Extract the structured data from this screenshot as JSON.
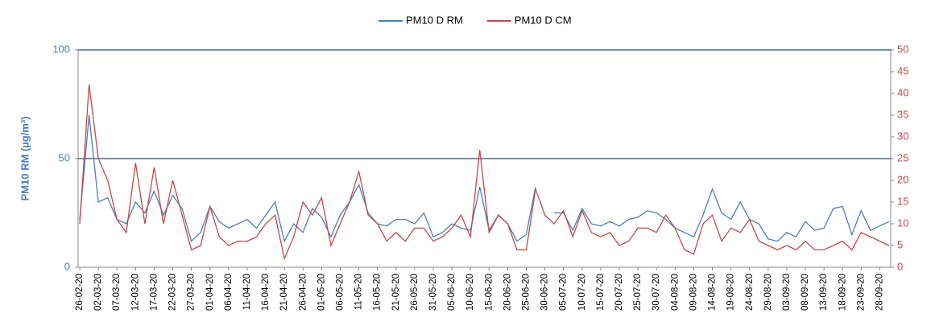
{
  "chart_data": {
    "type": "line",
    "categories": [
      "26-02-20",
      null,
      "02-03-20",
      null,
      "07-03-20",
      null,
      "12-03-20",
      null,
      "17-03-20",
      null,
      "22-03-20",
      null,
      "27-03-20",
      null,
      "01-04-20",
      null,
      "06-04-20",
      null,
      "11-04-20",
      null,
      "16-04-20",
      null,
      "21-04-20",
      null,
      "26-04-20",
      null,
      "01-05-20",
      null,
      "06-05-20",
      null,
      "11-05-20",
      null,
      "16-05-20",
      null,
      "21-05-20",
      null,
      "26-05-20",
      null,
      "31-05-20",
      null,
      "05-06-20",
      null,
      "10-06-20",
      null,
      "15-06-20",
      null,
      "20-06-20",
      null,
      "25-06-20",
      null,
      "30-06-20",
      null,
      "05-07-20",
      null,
      "10-07-20",
      null,
      "15-07-20",
      null,
      "20-07-20",
      null,
      "25-07-20",
      null,
      "30-07-20",
      null,
      "04-08-20",
      null,
      "09-08-20",
      null,
      "14-08-20",
      null,
      "19-08-20",
      null,
      "24-08-20",
      null,
      "29-08-20",
      null,
      "03-09-20",
      null,
      "08-09-20",
      null,
      "13-09-20",
      null,
      "18-09-20",
      null,
      "23-09-20",
      null,
      "28-09-20",
      null
    ],
    "series": [
      {
        "name": "PM10 D RM",
        "color": "#4a7ebb",
        "axis": "y",
        "values": [
          22,
          70,
          30,
          32,
          22,
          20,
          30,
          25,
          35,
          24,
          33,
          27,
          12,
          16,
          28,
          21,
          18,
          20,
          22,
          18,
          24,
          30,
          12,
          20,
          16,
          27,
          23,
          14,
          24,
          30,
          38,
          25,
          20,
          19,
          22,
          22,
          20,
          25,
          14,
          16,
          20,
          18,
          17,
          37,
          17,
          24,
          20,
          12,
          15,
          37,
          null,
          25,
          25,
          17,
          27,
          20,
          19,
          21,
          19,
          22,
          23,
          26,
          25,
          22,
          18,
          16,
          14,
          24,
          36,
          25,
          22,
          30,
          22,
          20,
          13,
          12,
          16,
          14,
          21,
          17,
          18,
          27,
          28,
          15,
          26,
          17,
          19,
          21
        ]
      },
      {
        "name": "PM10 D CM",
        "color": "#be4b48",
        "axis": "y2",
        "values": [
          10,
          42,
          25,
          20,
          11,
          8,
          24,
          10,
          23,
          10,
          20,
          12,
          4,
          5,
          14,
          7,
          5,
          6,
          6,
          7,
          10,
          12,
          2,
          7,
          15,
          12,
          16,
          5,
          10,
          15,
          22,
          12,
          10,
          6,
          8,
          6,
          9,
          9,
          6,
          7,
          9,
          12,
          7,
          27,
          8,
          12,
          10,
          4,
          4,
          18,
          12,
          10,
          13,
          7,
          13,
          8,
          7,
          8,
          5,
          6,
          9,
          9,
          8,
          12,
          9,
          4,
          3,
          10,
          12,
          6,
          9,
          8,
          11,
          6,
          5,
          4,
          5,
          4,
          6,
          4,
          4,
          5,
          6,
          4,
          8,
          7,
          6,
          5
        ]
      }
    ],
    "y_label": "PM10 RM (µg/m³)",
    "ylim": [
      0,
      100
    ],
    "yticks": [
      0,
      50,
      100
    ],
    "y2lim": [
      0,
      50
    ],
    "y2ticks": [
      0,
      5,
      10,
      15,
      20,
      25,
      30,
      35,
      40,
      45,
      50
    ],
    "grid": true,
    "legend": "top"
  }
}
